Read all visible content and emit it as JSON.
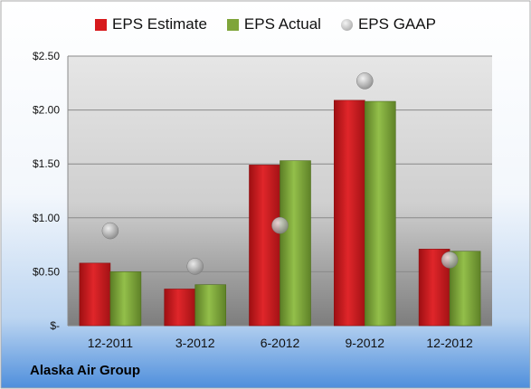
{
  "chart_data": {
    "type": "bar",
    "categories": [
      "12-2011",
      "3-2012",
      "6-2012",
      "9-2012",
      "12-2012"
    ],
    "series": [
      {
        "name": "EPS Estimate",
        "type": "bar",
        "color": "#d7191c",
        "values": [
          0.58,
          0.34,
          1.49,
          2.09,
          0.71
        ]
      },
      {
        "name": "EPS Actual",
        "type": "bar",
        "color": "#7fa53a",
        "values": [
          0.5,
          0.38,
          1.53,
          2.08,
          0.69
        ]
      },
      {
        "name": "EPS GAAP",
        "type": "scatter",
        "color": "#a6a6a6",
        "values": [
          0.88,
          0.55,
          0.93,
          2.27,
          0.61
        ]
      }
    ],
    "ylim": [
      0,
      2.5
    ],
    "yticks": [
      0,
      0.5,
      1.0,
      1.5,
      2.0,
      2.5
    ],
    "ytick_labels": [
      "$-",
      "$0.50",
      "$1.00",
      "$1.50",
      "$2.00",
      "$2.50"
    ],
    "grid": true,
    "legend": "top"
  },
  "company_name": "Alaska Air Group"
}
